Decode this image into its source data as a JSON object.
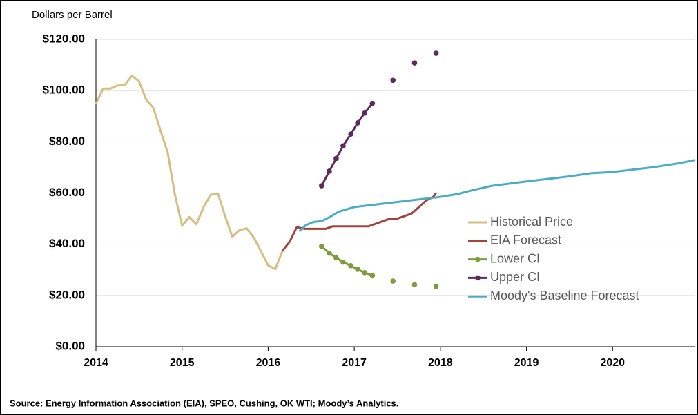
{
  "chart_data": {
    "type": "line",
    "y_label": "Dollars per Barrel",
    "source": "Source: Energy Information Association (EIA), SPEO, Cushing, OK WTI; Moody’s Analytics.",
    "xlim": [
      2014,
      2021
    ],
    "xticks": [
      2014,
      2015,
      2016,
      2017,
      2018,
      2019,
      2020
    ],
    "ylim": [
      0,
      120
    ],
    "yticks": [
      {
        "value": 0,
        "label": "$0.00"
      },
      {
        "value": 20,
        "label": "$20.00"
      },
      {
        "value": 40,
        "label": "$40.00"
      },
      {
        "value": 60,
        "label": "$60.00"
      },
      {
        "value": 80,
        "label": "$80.00"
      },
      {
        "value": 100,
        "label": "$100.00"
      },
      {
        "value": 120,
        "label": "$120.00"
      }
    ],
    "grid": true,
    "legend": "right",
    "series": [
      {
        "name": "Historical Price",
        "color": "#d6bd80",
        "markers": false,
        "x": [
          2014.0,
          2014.083,
          2014.167,
          2014.25,
          2014.333,
          2014.417,
          2014.5,
          2014.583,
          2014.667,
          2014.75,
          2014.833,
          2014.917,
          2015.0,
          2015.083,
          2015.167,
          2015.25,
          2015.333,
          2015.417,
          2015.5,
          2015.583,
          2015.667,
          2015.75,
          2015.833,
          2015.917,
          2016.0,
          2016.083,
          2016.167
        ],
        "values": [
          94.9,
          100.8,
          100.8,
          102,
          102.1,
          105.8,
          103.6,
          96.5,
          93.2,
          84.4,
          75.8,
          59.3,
          47.2,
          50.6,
          47.8,
          54.5,
          59.3,
          59.8,
          50.9,
          42.9,
          45.5,
          46.2,
          42.6,
          37.2,
          31.7,
          30.3,
          37.5
        ]
      },
      {
        "name": "EIA Forecast",
        "color": "#a3433b",
        "markers": false,
        "x": [
          2016.167,
          2016.25,
          2016.333,
          2016.417,
          2016.5,
          2016.583,
          2016.667,
          2016.75,
          2016.833,
          2016.917,
          2017.0,
          2017.083,
          2017.167,
          2017.25,
          2017.333,
          2017.417,
          2017.5,
          2017.583,
          2017.667,
          2017.75,
          2017.833,
          2017.917,
          2017.95
        ],
        "values": [
          37.5,
          41,
          46.7,
          46,
          46,
          46,
          46,
          47,
          47,
          47,
          47,
          47,
          47,
          48,
          49,
          50,
          50,
          51,
          52,
          54.5,
          57,
          58.5,
          60
        ]
      },
      {
        "name": "Lower CI",
        "color": "#7f9b3d",
        "markers": true,
        "x": [
          2016.62,
          2016.71,
          2016.79,
          2016.87,
          2016.96,
          2017.04,
          2017.12,
          2017.21,
          2017.33,
          2017.45,
          2017.58,
          2017.7,
          2017.83,
          2017.95
        ],
        "values": [
          39.2,
          36.5,
          34.7,
          33,
          31.6,
          30.2,
          28.9,
          27.8,
          null,
          25.6,
          null,
          24.2,
          null,
          23.5
        ]
      },
      {
        "name": "Upper CI",
        "color": "#5c2b5b",
        "markers": true,
        "x": [
          2016.62,
          2016.71,
          2016.79,
          2016.87,
          2016.96,
          2017.04,
          2017.12,
          2017.21,
          2017.33,
          2017.45,
          2017.58,
          2017.7,
          2017.83,
          2017.95
        ],
        "values": [
          62.8,
          68.5,
          73.5,
          78.4,
          83,
          87.4,
          91.2,
          95,
          null,
          104,
          null,
          110.8,
          null,
          114.6
        ]
      },
      {
        "name": "Moody's Baseline Forecast",
        "color": "#4bacc6",
        "markers": false,
        "x": [
          2016.36,
          2016.44,
          2016.53,
          2016.62,
          2016.71,
          2016.82,
          2017.0,
          2017.5,
          2018.0,
          2018.2,
          2018.4,
          2018.6,
          2019.0,
          2019.5,
          2019.75,
          2020.0,
          2020.5,
          2020.75,
          2020.96
        ],
        "values": [
          45,
          47.5,
          48.7,
          49,
          50.5,
          52.7,
          54.5,
          56.5,
          58.5,
          59.6,
          61.3,
          62.8,
          64.5,
          66.5,
          67.7,
          68.2,
          70.2,
          71.5,
          72.9
        ]
      }
    ]
  }
}
